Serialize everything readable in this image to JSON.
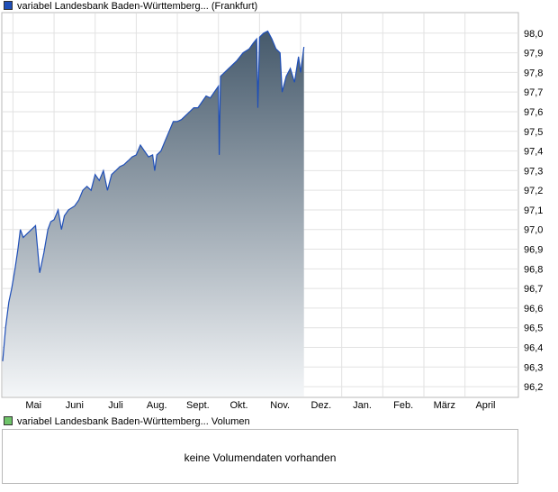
{
  "legend": {
    "price_label": "variabel Landesbank Baden-Württemberg... (Frankfurt)",
    "price_color": "#1f4fb8",
    "volume_label": "variabel Landesbank Baden-Württemberg... Volumen",
    "volume_color": "#6fc46a"
  },
  "volume_panel": {
    "message": "keine Volumendaten vorhanden"
  },
  "chart_data": {
    "type": "area",
    "x_axis": {
      "ticks": [
        "Mai",
        "Juni",
        "Juli",
        "Aug.",
        "Sept.",
        "Okt.",
        "Nov.",
        "Dez.",
        "Jan.",
        "Feb.",
        "März",
        "April"
      ],
      "range_months": [
        3.75,
        16.3
      ]
    },
    "y_axis": {
      "ticks": [
        "96,2",
        "96,3",
        "96,4",
        "96,5",
        "96,6",
        "96,7",
        "96,8",
        "96,9",
        "97,0",
        "97,1",
        "97,2",
        "97,3",
        "97,4",
        "97,5",
        "97,6",
        "97,7",
        "97,8",
        "97,9",
        "98,0"
      ],
      "range": [
        96.15,
        98.1
      ],
      "position": "right"
    },
    "grid": true,
    "line_color": "#1f4fb8",
    "fill_top_color": "#45596b",
    "fill_bottom_color": "#f4f6f8",
    "series": [
      {
        "points": [
          [
            3.75,
            96.33
          ],
          [
            3.82,
            96.5
          ],
          [
            3.9,
            96.63
          ],
          [
            3.97,
            96.7
          ],
          [
            4.05,
            96.8
          ],
          [
            4.12,
            96.9
          ],
          [
            4.18,
            97.0
          ],
          [
            4.25,
            96.96
          ],
          [
            4.35,
            96.98
          ],
          [
            4.45,
            97.0
          ],
          [
            4.55,
            97.02
          ],
          [
            4.65,
            96.78
          ],
          [
            4.75,
            96.88
          ],
          [
            4.85,
            97.0
          ],
          [
            4.92,
            97.04
          ],
          [
            5.0,
            97.05
          ],
          [
            5.1,
            97.1
          ],
          [
            5.18,
            97.0
          ],
          [
            5.25,
            97.07
          ],
          [
            5.35,
            97.1
          ],
          [
            5.5,
            97.12
          ],
          [
            5.6,
            97.15
          ],
          [
            5.7,
            97.2
          ],
          [
            5.8,
            97.22
          ],
          [
            5.9,
            97.2
          ],
          [
            6.0,
            97.28
          ],
          [
            6.1,
            97.25
          ],
          [
            6.2,
            97.3
          ],
          [
            6.3,
            97.2
          ],
          [
            6.4,
            97.28
          ],
          [
            6.5,
            97.3
          ],
          [
            6.6,
            97.32
          ],
          [
            6.7,
            97.33
          ],
          [
            6.8,
            97.35
          ],
          [
            6.9,
            97.37
          ],
          [
            7.0,
            97.38
          ],
          [
            7.1,
            97.43
          ],
          [
            7.2,
            97.4
          ],
          [
            7.3,
            97.37
          ],
          [
            7.4,
            97.38
          ],
          [
            7.45,
            97.3
          ],
          [
            7.5,
            97.38
          ],
          [
            7.6,
            97.4
          ],
          [
            7.7,
            97.45
          ],
          [
            7.8,
            97.5
          ],
          [
            7.9,
            97.55
          ],
          [
            8.0,
            97.55
          ],
          [
            8.1,
            97.56
          ],
          [
            8.2,
            97.58
          ],
          [
            8.3,
            97.6
          ],
          [
            8.4,
            97.62
          ],
          [
            8.5,
            97.62
          ],
          [
            8.6,
            97.65
          ],
          [
            8.7,
            97.68
          ],
          [
            8.8,
            97.67
          ],
          [
            8.9,
            97.7
          ],
          [
            9.0,
            97.73
          ],
          [
            9.02,
            97.38
          ],
          [
            9.05,
            97.78
          ],
          [
            9.15,
            97.8
          ],
          [
            9.3,
            97.83
          ],
          [
            9.45,
            97.86
          ],
          [
            9.6,
            97.9
          ],
          [
            9.75,
            97.92
          ],
          [
            9.85,
            97.95
          ],
          [
            9.93,
            97.97
          ],
          [
            9.96,
            97.62
          ],
          [
            10.0,
            97.98
          ],
          [
            10.1,
            98.0
          ],
          [
            10.2,
            98.01
          ],
          [
            10.3,
            97.97
          ],
          [
            10.4,
            97.92
          ],
          [
            10.5,
            97.9
          ],
          [
            10.55,
            97.7
          ],
          [
            10.65,
            97.78
          ],
          [
            10.75,
            97.82
          ],
          [
            10.85,
            97.75
          ],
          [
            10.95,
            97.88
          ],
          [
            11.0,
            97.8
          ],
          [
            11.08,
            97.93
          ]
        ]
      }
    ]
  }
}
